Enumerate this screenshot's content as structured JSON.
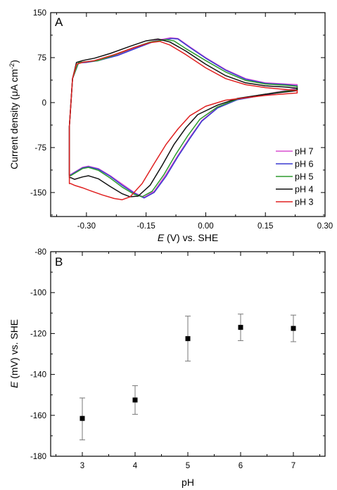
{
  "chart_data": [
    {
      "type": "line",
      "panel_label": "A",
      "xlabel_italic": "E",
      "xlabel_rest": " (V) vs. SHE",
      "ylabel": "Current density (μA cm",
      "ylabel_superscript": "-2",
      "ylabel_close": ")",
      "xlim": [
        -0.39,
        0.3
      ],
      "ylim": [
        -190,
        150
      ],
      "xticks": [
        -0.3,
        -0.15,
        0.0,
        0.15,
        0.3
      ],
      "xtick_labels": [
        "-0.30",
        "-0.15",
        "0.00",
        "0.15",
        "0.30"
      ],
      "yticks": [
        150,
        75,
        0,
        -75,
        -150
      ],
      "ytick_labels": [
        "150",
        "75",
        "0",
        "-75",
        "-150"
      ],
      "legend_position": "lower-right",
      "series": [
        {
          "name": "pH 7",
          "color": "#d94fd0",
          "points": [
            [
              -0.34,
              -120
            ],
            [
              -0.33,
              -116
            ],
            [
              -0.31,
              -108
            ],
            [
              -0.295,
              -106
            ],
            [
              -0.27,
              -110
            ],
            [
              -0.24,
              -122
            ],
            [
              -0.21,
              -136
            ],
            [
              -0.18,
              -150
            ],
            [
              -0.155,
              -158
            ],
            [
              -0.13,
              -148
            ],
            [
              -0.1,
              -120
            ],
            [
              -0.07,
              -88
            ],
            [
              -0.04,
              -58
            ],
            [
              -0.01,
              -30
            ],
            [
              0.03,
              -8
            ],
            [
              0.08,
              6
            ],
            [
              0.15,
              14
            ],
            [
              0.23,
              24
            ],
            [
              0.23,
              30
            ],
            [
              0.2,
              31
            ],
            [
              0.15,
              33
            ],
            [
              0.1,
              40
            ],
            [
              0.05,
              55
            ],
            [
              0.0,
              75
            ],
            [
              -0.04,
              93
            ],
            [
              -0.07,
              107
            ],
            [
              -0.09,
              108
            ],
            [
              -0.13,
              103
            ],
            [
              -0.17,
              93
            ],
            [
              -0.22,
              80
            ],
            [
              -0.27,
              70
            ],
            [
              -0.3,
              68
            ],
            [
              -0.32,
              67
            ],
            [
              -0.335,
              40
            ],
            [
              -0.343,
              -40
            ],
            [
              -0.343,
              -120
            ]
          ]
        },
        {
          "name": "pH 6",
          "color": "#3a3ad0",
          "points": [
            [
              -0.34,
              -121
            ],
            [
              -0.33,
              -117
            ],
            [
              -0.31,
              -109
            ],
            [
              -0.295,
              -107
            ],
            [
              -0.27,
              -111
            ],
            [
              -0.24,
              -123
            ],
            [
              -0.21,
              -138
            ],
            [
              -0.18,
              -151
            ],
            [
              -0.155,
              -159
            ],
            [
              -0.13,
              -150
            ],
            [
              -0.1,
              -123
            ],
            [
              -0.07,
              -90
            ],
            [
              -0.04,
              -60
            ],
            [
              -0.01,
              -31
            ],
            [
              0.03,
              -9
            ],
            [
              0.08,
              5
            ],
            [
              0.15,
              13
            ],
            [
              0.23,
              22
            ],
            [
              0.23,
              28
            ],
            [
              0.2,
              30
            ],
            [
              0.15,
              32
            ],
            [
              0.1,
              39
            ],
            [
              0.05,
              54
            ],
            [
              0.0,
              74
            ],
            [
              -0.04,
              92
            ],
            [
              -0.07,
              106
            ],
            [
              -0.085,
              107
            ],
            [
              -0.13,
              102
            ],
            [
              -0.17,
              92
            ],
            [
              -0.22,
              79
            ],
            [
              -0.27,
              70
            ],
            [
              -0.3,
              67
            ],
            [
              -0.32,
              66
            ],
            [
              -0.335,
              40
            ],
            [
              -0.343,
              -40
            ],
            [
              -0.343,
              -121
            ]
          ]
        },
        {
          "name": "pH 5",
          "color": "#2e9a2e",
          "points": [
            [
              -0.34,
              -122
            ],
            [
              -0.33,
              -118
            ],
            [
              -0.31,
              -110
            ],
            [
              -0.295,
              -108
            ],
            [
              -0.27,
              -113
            ],
            [
              -0.24,
              -126
            ],
            [
              -0.21,
              -141
            ],
            [
              -0.18,
              -153
            ],
            [
              -0.16,
              -157
            ],
            [
              -0.135,
              -148
            ],
            [
              -0.105,
              -120
            ],
            [
              -0.075,
              -86
            ],
            [
              -0.045,
              -55
            ],
            [
              -0.015,
              -28
            ],
            [
              0.03,
              -7
            ],
            [
              0.08,
              6
            ],
            [
              0.15,
              14
            ],
            [
              0.23,
              22
            ],
            [
              0.23,
              27
            ],
            [
              0.2,
              29
            ],
            [
              0.15,
              31
            ],
            [
              0.1,
              37
            ],
            [
              0.05,
              51
            ],
            [
              0.0,
              70
            ],
            [
              -0.05,
              90
            ],
            [
              -0.08,
              103
            ],
            [
              -0.1,
              105
            ],
            [
              -0.14,
              101
            ],
            [
              -0.18,
              92
            ],
            [
              -0.23,
              79
            ],
            [
              -0.27,
              70
            ],
            [
              -0.3,
              68
            ],
            [
              -0.32,
              67
            ],
            [
              -0.335,
              40
            ],
            [
              -0.343,
              -40
            ],
            [
              -0.343,
              -122
            ]
          ]
        },
        {
          "name": "pH 4",
          "color": "#111111",
          "points": [
            [
              -0.34,
              -125
            ],
            [
              -0.33,
              -128
            ],
            [
              -0.31,
              -124
            ],
            [
              -0.295,
              -122
            ],
            [
              -0.27,
              -127
            ],
            [
              -0.24,
              -140
            ],
            [
              -0.21,
              -152
            ],
            [
              -0.19,
              -157
            ],
            [
              -0.17,
              -156
            ],
            [
              -0.14,
              -138
            ],
            [
              -0.11,
              -105
            ],
            [
              -0.08,
              -70
            ],
            [
              -0.05,
              -42
            ],
            [
              -0.02,
              -20
            ],
            [
              0.03,
              -4
            ],
            [
              0.08,
              7
            ],
            [
              0.15,
              14
            ],
            [
              0.23,
              20
            ],
            [
              0.23,
              24
            ],
            [
              0.2,
              26
            ],
            [
              0.15,
              28
            ],
            [
              0.1,
              33
            ],
            [
              0.05,
              45
            ],
            [
              0.0,
              64
            ],
            [
              -0.05,
              86
            ],
            [
              -0.09,
              101
            ],
            [
              -0.12,
              106
            ],
            [
              -0.15,
              103
            ],
            [
              -0.19,
              94
            ],
            [
              -0.24,
              82
            ],
            [
              -0.28,
              74
            ],
            [
              -0.31,
              70
            ],
            [
              -0.325,
              67
            ],
            [
              -0.335,
              40
            ],
            [
              -0.343,
              -40
            ],
            [
              -0.343,
              -125
            ]
          ]
        },
        {
          "name": "pH 3",
          "color": "#e02020",
          "points": [
            [
              -0.34,
              -135
            ],
            [
              -0.33,
              -138
            ],
            [
              -0.31,
              -142
            ],
            [
              -0.29,
              -147
            ],
            [
              -0.26,
              -154
            ],
            [
              -0.23,
              -160
            ],
            [
              -0.21,
              -162
            ],
            [
              -0.19,
              -157
            ],
            [
              -0.16,
              -135
            ],
            [
              -0.13,
              -102
            ],
            [
              -0.1,
              -70
            ],
            [
              -0.07,
              -44
            ],
            [
              -0.04,
              -22
            ],
            [
              0.0,
              -6
            ],
            [
              0.05,
              4
            ],
            [
              0.15,
              12
            ],
            [
              0.23,
              16
            ],
            [
              0.23,
              20
            ],
            [
              0.2,
              22
            ],
            [
              0.15,
              25
            ],
            [
              0.1,
              30
            ],
            [
              0.05,
              40
            ],
            [
              0.0,
              58
            ],
            [
              -0.05,
              80
            ],
            [
              -0.09,
              96
            ],
            [
              -0.115,
              102
            ],
            [
              -0.14,
              100
            ],
            [
              -0.18,
              92
            ],
            [
              -0.23,
              80
            ],
            [
              -0.28,
              70
            ],
            [
              -0.31,
              67
            ],
            [
              -0.325,
              64
            ],
            [
              -0.335,
              40
            ],
            [
              -0.343,
              -40
            ],
            [
              -0.343,
              -135
            ]
          ]
        }
      ]
    },
    {
      "type": "scatter",
      "panel_label": "B",
      "xlabel": "pH",
      "ylabel_italic": "E",
      "ylabel_rest": " (mV) vs. SHE",
      "xlim": [
        2.4,
        7.6
      ],
      "ylim": [
        -180,
        -80
      ],
      "xticks": [
        3,
        4,
        5,
        6,
        7
      ],
      "xtick_labels": [
        "3",
        "4",
        "5",
        "6",
        "7"
      ],
      "yticks": [
        -80,
        -100,
        -120,
        -140,
        -160,
        -180
      ],
      "ytick_labels": [
        "-80",
        "-100",
        "-120",
        "-140",
        "-160",
        "-180"
      ],
      "points": [
        {
          "x": 3,
          "y": -161.5,
          "err_low": -172,
          "err_high": -151.5
        },
        {
          "x": 4,
          "y": -152.5,
          "err_low": -159.5,
          "err_high": -145.5
        },
        {
          "x": 5,
          "y": -122.5,
          "err_low": -133.5,
          "err_high": -111.5
        },
        {
          "x": 6,
          "y": -117,
          "err_low": -123.5,
          "err_high": -110.5
        },
        {
          "x": 7,
          "y": -117.5,
          "err_low": -124,
          "err_high": -111
        }
      ]
    }
  ]
}
